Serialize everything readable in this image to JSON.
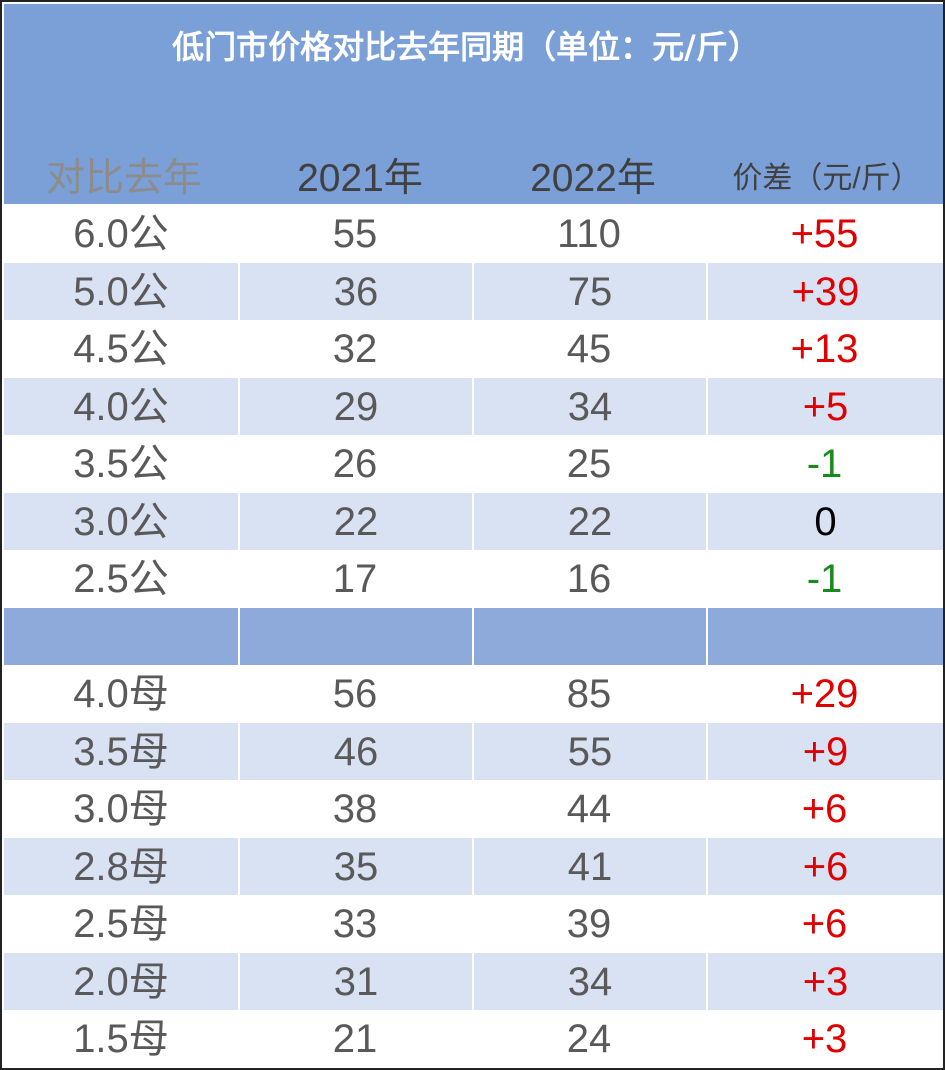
{
  "title": "低门市价格对比去年同期（单位：元/斤）",
  "columns": [
    "对比去年",
    "2021年",
    "2022年",
    "价差（元/斤）"
  ],
  "colors": {
    "header_band": "#7b9fd7",
    "row_alt": "#d9e2f3",
    "separator": "#8eaadb",
    "positive": "#e00000",
    "negative": "#1a8a1a"
  },
  "rows_male": [
    {
      "spec": "6.0公",
      "y2021": "55",
      "y2022": "110",
      "diff": "+55"
    },
    {
      "spec": "5.0公",
      "y2021": "36",
      "y2022": "75",
      "diff": "+39"
    },
    {
      "spec": "4.5公",
      "y2021": "32",
      "y2022": "45",
      "diff": "+13"
    },
    {
      "spec": "4.0公",
      "y2021": "29",
      "y2022": "34",
      "diff": "+5"
    },
    {
      "spec": "3.5公",
      "y2021": "26",
      "y2022": "25",
      "diff": "-1"
    },
    {
      "spec": "3.0公",
      "y2021": "22",
      "y2022": "22",
      "diff": "0"
    },
    {
      "spec": "2.5公",
      "y2021": "17",
      "y2022": "16",
      "diff": "-1"
    }
  ],
  "rows_female": [
    {
      "spec": "4.0母",
      "y2021": "56",
      "y2022": "85",
      "diff": "+29"
    },
    {
      "spec": "3.5母",
      "y2021": "46",
      "y2022": "55",
      "diff": "+9"
    },
    {
      "spec": "3.0母",
      "y2021": "38",
      "y2022": "44",
      "diff": "+6"
    },
    {
      "spec": "2.8母",
      "y2021": "35",
      "y2022": "41",
      "diff": "+6"
    },
    {
      "spec": "2.5母",
      "y2021": "33",
      "y2022": "39",
      "diff": "+6"
    },
    {
      "spec": "2.0母",
      "y2021": "31",
      "y2022": "34",
      "diff": "+3"
    },
    {
      "spec": "1.5母",
      "y2021": "21",
      "y2022": "24",
      "diff": "+3"
    }
  ]
}
